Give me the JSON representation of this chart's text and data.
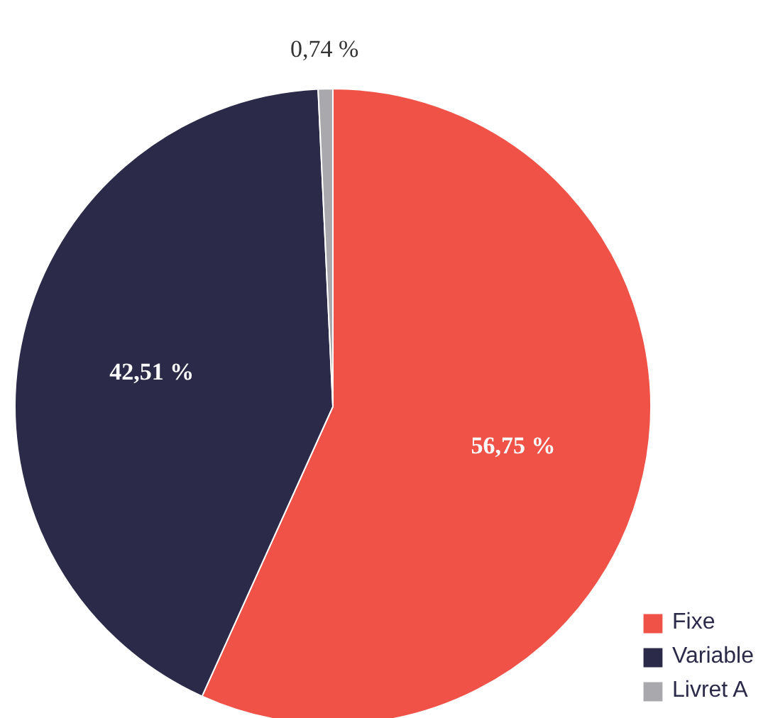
{
  "chart_data": {
    "type": "pie",
    "categories": [
      "Fixe",
      "Variable",
      "Livret A"
    ],
    "values": [
      56.75,
      42.51,
      0.74
    ],
    "colors": [
      "#f05247",
      "#2b2a48",
      "#a8a8ad"
    ],
    "value_labels": [
      "56,75 %",
      "42,51 %",
      "0,74 %"
    ],
    "legend": "bottom right"
  }
}
